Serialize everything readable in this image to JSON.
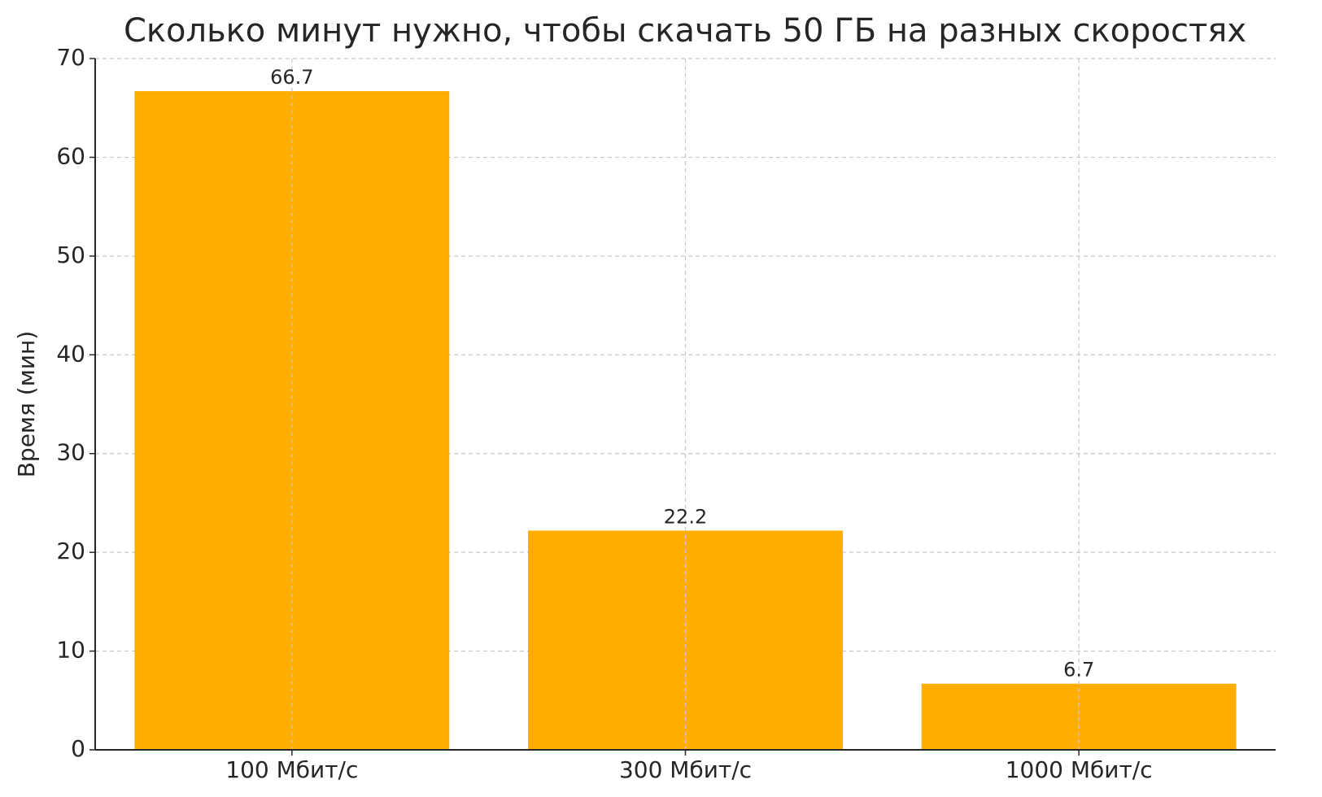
{
  "chart_data": {
    "type": "bar",
    "title": "Сколько минут нужно, чтобы скачать 50 ГБ на разных скоростях",
    "y_label": "Время (мин)",
    "categories": [
      "100 Мбит/с",
      "300 Мбит/с",
      "1000 Мбит/с"
    ],
    "values": [
      66.7,
      22.2,
      6.7
    ],
    "color": "#ffae00",
    "ylim": [
      0,
      70
    ],
    "yticks": [
      0,
      10,
      20,
      30,
      40,
      50,
      60,
      70
    ],
    "grid": true
  }
}
